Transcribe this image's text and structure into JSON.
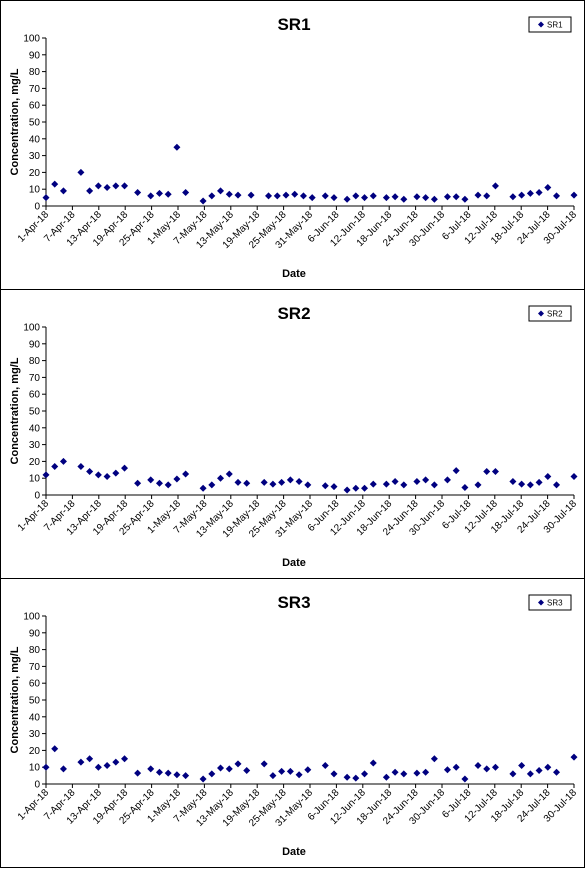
{
  "colors": {
    "marker": "#000080",
    "axis": "#000000",
    "frame": "#000000"
  },
  "chart_data": [
    {
      "type": "scatter",
      "title": "SR1",
      "xlabel": "Date",
      "ylabel": "Concentration, mg/L",
      "ylim": [
        0,
        100
      ],
      "yticks": [
        0,
        10,
        20,
        30,
        40,
        50,
        60,
        70,
        80,
        90,
        100
      ],
      "xlim": [
        "2018-04-01",
        "2018-07-31"
      ],
      "xtick_labels": [
        "1-Apr-18",
        "7-Apr-18",
        "13-Apr-18",
        "19-Apr-18",
        "25-Apr-18",
        "1-May-18",
        "7-May-18",
        "13-May-18",
        "19-May-18",
        "25-May-18",
        "31-May-18",
        "6-Jun-18",
        "12-Jun-18",
        "18-Jun-18",
        "24-Jun-18",
        "30-Jun-18",
        "6-Jul-18",
        "12-Jul-18",
        "18-Jul-18",
        "24-Jul-18",
        "30-Jul-18"
      ],
      "grid": false,
      "legend": {
        "position": "top-right",
        "entries": [
          "SR1"
        ]
      },
      "series": [
        {
          "name": "SR1",
          "marker": "diamond",
          "points": [
            [
              "2018-04-01",
              5
            ],
            [
              "2018-04-03",
              13
            ],
            [
              "2018-04-05",
              9
            ],
            [
              "2018-04-09",
              20
            ],
            [
              "2018-04-11",
              9
            ],
            [
              "2018-04-13",
              12
            ],
            [
              "2018-04-15",
              11
            ],
            [
              "2018-04-17",
              12
            ],
            [
              "2018-04-19",
              12
            ],
            [
              "2018-04-22",
              8
            ],
            [
              "2018-04-25",
              6
            ],
            [
              "2018-04-27",
              7.5
            ],
            [
              "2018-04-29",
              7
            ],
            [
              "2018-05-01",
              35
            ],
            [
              "2018-05-03",
              8
            ],
            [
              "2018-05-07",
              3
            ],
            [
              "2018-05-09",
              6
            ],
            [
              "2018-05-11",
              9
            ],
            [
              "2018-05-13",
              7
            ],
            [
              "2018-05-15",
              6.5
            ],
            [
              "2018-05-18",
              6.5
            ],
            [
              "2018-05-22",
              6
            ],
            [
              "2018-05-24",
              6
            ],
            [
              "2018-05-26",
              6.5
            ],
            [
              "2018-05-28",
              7
            ],
            [
              "2018-05-30",
              6
            ],
            [
              "2018-06-01",
              5
            ],
            [
              "2018-06-04",
              6
            ],
            [
              "2018-06-06",
              5
            ],
            [
              "2018-06-09",
              4
            ],
            [
              "2018-06-11",
              6
            ],
            [
              "2018-06-13",
              5
            ],
            [
              "2018-06-15",
              6
            ],
            [
              "2018-06-18",
              5
            ],
            [
              "2018-06-20",
              5.5
            ],
            [
              "2018-06-22",
              4
            ],
            [
              "2018-06-25",
              5.5
            ],
            [
              "2018-06-27",
              5
            ],
            [
              "2018-06-29",
              4
            ],
            [
              "2018-07-02",
              5.5
            ],
            [
              "2018-07-04",
              5.5
            ],
            [
              "2018-07-06",
              4
            ],
            [
              "2018-07-09",
              6.5
            ],
            [
              "2018-07-11",
              6
            ],
            [
              "2018-07-13",
              12
            ],
            [
              "2018-07-17",
              5.5
            ],
            [
              "2018-07-19",
              6.5
            ],
            [
              "2018-07-21",
              7.5
            ],
            [
              "2018-07-23",
              8
            ],
            [
              "2018-07-25",
              11
            ],
            [
              "2018-07-27",
              6
            ],
            [
              "2018-07-31",
              6.5
            ]
          ]
        }
      ]
    },
    {
      "type": "scatter",
      "title": "SR2",
      "xlabel": "Date",
      "ylabel": "Concentration, mg/L",
      "ylim": [
        0,
        100
      ],
      "yticks": [
        0,
        10,
        20,
        30,
        40,
        50,
        60,
        70,
        80,
        90,
        100
      ],
      "xlim": [
        "2018-04-01",
        "2018-07-31"
      ],
      "xtick_labels": [
        "1-Apr-18",
        "7-Apr-18",
        "13-Apr-18",
        "19-Apr-18",
        "25-Apr-18",
        "1-May-18",
        "7-May-18",
        "13-May-18",
        "19-May-18",
        "25-May-18",
        "31-May-18",
        "6-Jun-18",
        "12-Jun-18",
        "18-Jun-18",
        "24-Jun-18",
        "30-Jun-18",
        "6-Jul-18",
        "12-Jul-18",
        "18-Jul-18",
        "24-Jul-18",
        "30-Jul-18"
      ],
      "grid": false,
      "legend": {
        "position": "top-right",
        "entries": [
          "SR2"
        ]
      },
      "series": [
        {
          "name": "SR2",
          "marker": "diamond",
          "points": [
            [
              "2018-04-01",
              12
            ],
            [
              "2018-04-03",
              17
            ],
            [
              "2018-04-05",
              20
            ],
            [
              "2018-04-09",
              17
            ],
            [
              "2018-04-11",
              14
            ],
            [
              "2018-04-13",
              12
            ],
            [
              "2018-04-15",
              11
            ],
            [
              "2018-04-17",
              13
            ],
            [
              "2018-04-19",
              16
            ],
            [
              "2018-04-22",
              7
            ],
            [
              "2018-04-25",
              9
            ],
            [
              "2018-04-27",
              7
            ],
            [
              "2018-04-29",
              6
            ],
            [
              "2018-05-01",
              9.5
            ],
            [
              "2018-05-03",
              12.5
            ],
            [
              "2018-05-07",
              4
            ],
            [
              "2018-05-09",
              6
            ],
            [
              "2018-05-11",
              10
            ],
            [
              "2018-05-13",
              12.5
            ],
            [
              "2018-05-15",
              7.5
            ],
            [
              "2018-05-17",
              7
            ],
            [
              "2018-05-21",
              7.5
            ],
            [
              "2018-05-23",
              6.5
            ],
            [
              "2018-05-25",
              7.5
            ],
            [
              "2018-05-27",
              9
            ],
            [
              "2018-05-29",
              8
            ],
            [
              "2018-05-31",
              6
            ],
            [
              "2018-06-04",
              5.5
            ],
            [
              "2018-06-06",
              5
            ],
            [
              "2018-06-09",
              3
            ],
            [
              "2018-06-11",
              4
            ],
            [
              "2018-06-13",
              4
            ],
            [
              "2018-06-15",
              6.5
            ],
            [
              "2018-06-18",
              6.5
            ],
            [
              "2018-06-20",
              8
            ],
            [
              "2018-06-22",
              6
            ],
            [
              "2018-06-25",
              8
            ],
            [
              "2018-06-27",
              9
            ],
            [
              "2018-06-29",
              6
            ],
            [
              "2018-07-02",
              9
            ],
            [
              "2018-07-04",
              14.5
            ],
            [
              "2018-07-06",
              4.5
            ],
            [
              "2018-07-09",
              6
            ],
            [
              "2018-07-11",
              14
            ],
            [
              "2018-07-13",
              14
            ],
            [
              "2018-07-17",
              8
            ],
            [
              "2018-07-19",
              6.5
            ],
            [
              "2018-07-21",
              6
            ],
            [
              "2018-07-23",
              7.5
            ],
            [
              "2018-07-25",
              11
            ],
            [
              "2018-07-27",
              6
            ],
            [
              "2018-07-31",
              11
            ]
          ]
        }
      ]
    },
    {
      "type": "scatter",
      "title": "SR3",
      "xlabel": "Date",
      "ylabel": "Concentration, mg/L",
      "ylim": [
        0,
        100
      ],
      "yticks": [
        0,
        10,
        20,
        30,
        40,
        50,
        60,
        70,
        80,
        90,
        100
      ],
      "xlim": [
        "2018-04-01",
        "2018-07-31"
      ],
      "xtick_labels": [
        "1-Apr-18",
        "7-Apr-18",
        "13-Apr-18",
        "19-Apr-18",
        "25-Apr-18",
        "1-May-18",
        "7-May-18",
        "13-May-18",
        "19-May-18",
        "25-May-18",
        "31-May-18",
        "6-Jun-18",
        "12-Jun-18",
        "18-Jun-18",
        "24-Jun-18",
        "30-Jun-18",
        "6-Jul-18",
        "12-Jul-18",
        "18-Jul-18",
        "24-Jul-18",
        "30-Jul-18"
      ],
      "grid": false,
      "legend": {
        "position": "top-right",
        "entries": [
          "SR3"
        ]
      },
      "series": [
        {
          "name": "SR3",
          "marker": "diamond",
          "points": [
            [
              "2018-04-01",
              10
            ],
            [
              "2018-04-03",
              21
            ],
            [
              "2018-04-05",
              9
            ],
            [
              "2018-04-09",
              13
            ],
            [
              "2018-04-11",
              15
            ],
            [
              "2018-04-13",
              10
            ],
            [
              "2018-04-15",
              11
            ],
            [
              "2018-04-17",
              13
            ],
            [
              "2018-04-19",
              15
            ],
            [
              "2018-04-22",
              6.5
            ],
            [
              "2018-04-25",
              9
            ],
            [
              "2018-04-27",
              7
            ],
            [
              "2018-04-29",
              6.5
            ],
            [
              "2018-05-01",
              5.5
            ],
            [
              "2018-05-03",
              5
            ],
            [
              "2018-05-07",
              3
            ],
            [
              "2018-05-09",
              6
            ],
            [
              "2018-05-11",
              9.5
            ],
            [
              "2018-05-13",
              9
            ],
            [
              "2018-05-15",
              12
            ],
            [
              "2018-05-17",
              8
            ],
            [
              "2018-05-21",
              12
            ],
            [
              "2018-05-23",
              5
            ],
            [
              "2018-05-25",
              7.5
            ],
            [
              "2018-05-27",
              7.5
            ],
            [
              "2018-05-29",
              5.5
            ],
            [
              "2018-05-31",
              8.5
            ],
            [
              "2018-06-04",
              11
            ],
            [
              "2018-06-06",
              6
            ],
            [
              "2018-06-09",
              4
            ],
            [
              "2018-06-11",
              3.5
            ],
            [
              "2018-06-13",
              6
            ],
            [
              "2018-06-15",
              12.5
            ],
            [
              "2018-06-18",
              4
            ],
            [
              "2018-06-20",
              7
            ],
            [
              "2018-06-22",
              6
            ],
            [
              "2018-06-25",
              6.5
            ],
            [
              "2018-06-27",
              7
            ],
            [
              "2018-06-29",
              15
            ],
            [
              "2018-07-02",
              8.5
            ],
            [
              "2018-07-04",
              10
            ],
            [
              "2018-07-06",
              3
            ],
            [
              "2018-07-09",
              11
            ],
            [
              "2018-07-11",
              9
            ],
            [
              "2018-07-13",
              10
            ],
            [
              "2018-07-17",
              6
            ],
            [
              "2018-07-19",
              11
            ],
            [
              "2018-07-21",
              6
            ],
            [
              "2018-07-23",
              8
            ],
            [
              "2018-07-25",
              10
            ],
            [
              "2018-07-27",
              7
            ],
            [
              "2018-07-31",
              16
            ]
          ]
        }
      ]
    }
  ]
}
